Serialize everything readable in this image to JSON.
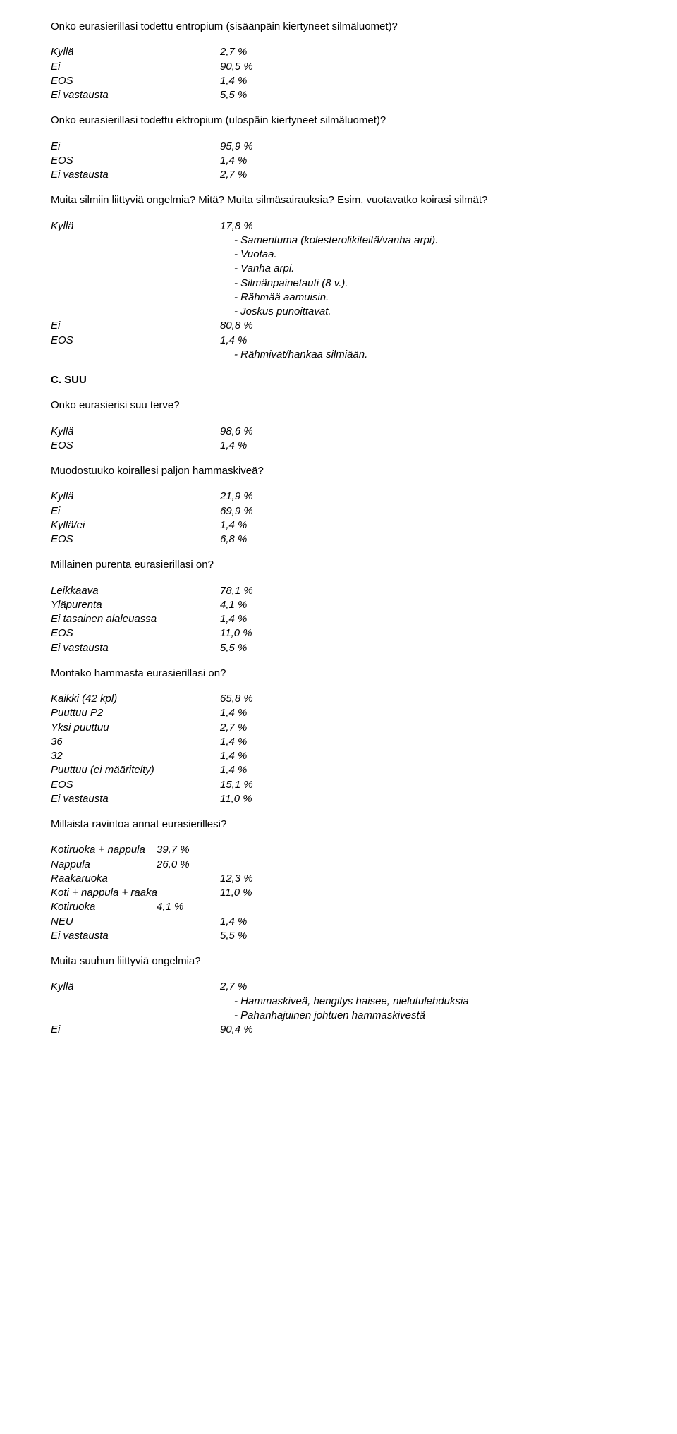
{
  "colors": {
    "text": "#000000",
    "background": "#ffffff"
  },
  "font": {
    "family": "Arial",
    "size_pt": 11
  },
  "q1": {
    "text": "Onko eurasierillasi todettu entropium (sisäänpäin kiertyneet silmäluomet)?",
    "rows": [
      {
        "label": "Kyllä",
        "value": "2,7 %"
      },
      {
        "label": "Ei",
        "value": "90,5 %"
      },
      {
        "label": "EOS",
        "value": "1,4 %"
      },
      {
        "label": "Ei vastausta",
        "value": "5,5 %"
      }
    ]
  },
  "q2": {
    "text": "Onko eurasierillasi todettu ektropium (ulospäin kiertyneet silmäluomet)?",
    "rows": [
      {
        "label": "Ei",
        "value": "95,9 %"
      },
      {
        "label": "EOS",
        "value": "1,4 %"
      },
      {
        "label": "Ei vastausta",
        "value": "2,7 %"
      }
    ]
  },
  "q3": {
    "text": "Muita silmiin liittyviä ongelmia? Mitä? Muita silmäsairauksia? Esim. vuotavatko koirasi silmät?",
    "top_rows": [
      {
        "label": "Kyllä",
        "value": "17,8 %"
      }
    ],
    "notes_top": [
      "- Samentuma (kolesterolikiteitä/vanha arpi).",
      "- Vuotaa.",
      "- Vanha arpi.",
      "- Silmänpainetauti (8 v.).",
      "- Rähmää aamuisin.",
      "- Joskus punoittavat."
    ],
    "mid_rows": [
      {
        "label": "Ei",
        "value": "80,8 %"
      },
      {
        "label": "EOS",
        "value": "1,4 %"
      }
    ],
    "notes_bottom": [
      "- Rähmivät/hankaa silmiään."
    ]
  },
  "section_c": "C. SUU",
  "q4": {
    "text": "Onko eurasierisi suu terve?",
    "rows": [
      {
        "label": "Kyllä",
        "value": "98,6 %"
      },
      {
        "label": "EOS",
        "value": "1,4 %"
      }
    ]
  },
  "q5": {
    "text": "Muodostuuko koirallesi paljon hammaskiveä?",
    "rows": [
      {
        "label": "Kyllä",
        "value": "21,9 %"
      },
      {
        "label": "Ei",
        "value": "69,9 %"
      },
      {
        "label": "Kyllä/ei",
        "value": "1,4 %"
      },
      {
        "label": "EOS",
        "value": "6,8 %"
      }
    ]
  },
  "q6": {
    "text": "Millainen purenta eurasierillasi on?",
    "rows": [
      {
        "label": "Leikkaava",
        "value": "78,1 %"
      },
      {
        "label": "Yläpurenta",
        "value": "4,1 %"
      },
      {
        "label": "Ei tasainen alaleuassa",
        "value": "1,4 %"
      },
      {
        "label": "EOS",
        "value": "11,0 %"
      },
      {
        "label": "Ei vastausta",
        "value": "5,5 %"
      }
    ]
  },
  "q7": {
    "text": "Montako hammasta eurasierillasi on?",
    "rows": [
      {
        "label": "Kaikki (42 kpl)",
        "value": "65,8 %"
      },
      {
        "label": "Puuttuu P2",
        "value": "1,4 %"
      },
      {
        "label": "Yksi puuttuu",
        "value": "2,7 %"
      },
      {
        "label": "36",
        "value": "1,4 %"
      },
      {
        "label": "32",
        "value": "1,4 %"
      },
      {
        "label": "Puuttuu (ei määritelty)",
        "value": "1,4 %"
      },
      {
        "label": "EOS",
        "value": "15,1 %"
      },
      {
        "label": "Ei vastausta",
        "value": "11,0 %"
      }
    ]
  },
  "q8": {
    "text": "Millaista ravintoa annat eurasierillesi?",
    "rows": [
      {
        "label": "Kotiruoka + nappula",
        "value": "39,7 %",
        "tight": true
      },
      {
        "label": "Nappula",
        "value": "26,0 %",
        "tight": true
      },
      {
        "label": "Raakaruoka",
        "value": "12,3 %"
      },
      {
        "label": "Koti + nappula + raaka",
        "value": "11,0 %"
      },
      {
        "label": "Kotiruoka",
        "value": "4,1 %",
        "tight": true
      },
      {
        "label": "NEU",
        "value": "1,4 %"
      },
      {
        "label": "Ei vastausta",
        "value": "5,5 %"
      }
    ]
  },
  "q9": {
    "text": "Muita suuhun liittyviä ongelmia?",
    "top_rows": [
      {
        "label": "Kyllä",
        "value": "2,7 %"
      }
    ],
    "notes": [
      "- Hammaskiveä, hengitys haisee, nielutulehduksia",
      "- Pahanhajuinen johtuen hammaskivestä"
    ],
    "bottom_rows": [
      {
        "label": "Ei",
        "value": "90,4 %"
      }
    ]
  }
}
